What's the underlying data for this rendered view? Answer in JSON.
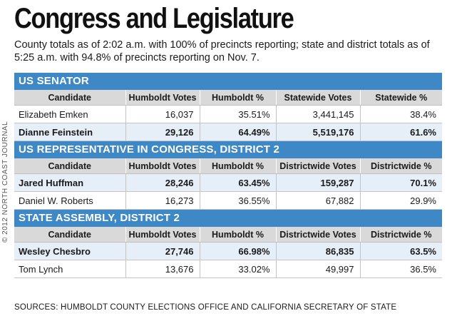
{
  "title": "Congress and Legislature",
  "subtitle": "County totals as of 2:02 a.m. with 100% of precincts reporting; state and district totals as of 5:25 a.m. with 94.8% of precincts reporting on Nov. 7.",
  "side_credit": "© 2012 NORTH COAST JOURNAL",
  "source": "SOURCES: HUMBOLDT COUNTY ELECTIONS OFFICE AND CALIFORNIA SECRETARY OF STATE",
  "colors": {
    "header_blue": "#3e88c6",
    "column_gray": "#d9d9d9",
    "winner_row": "#e6eef8"
  },
  "sections": [
    {
      "header": "US SENATOR",
      "columns": [
        "Candidate",
        "Humboldt Votes",
        "Humboldt %",
        "Statewide Votes",
        "Statewide %"
      ],
      "rows": [
        {
          "name": "Elizabeth Emken",
          "hvotes": "16,037",
          "hpct": "35.51%",
          "votes": "3,441,145",
          "pct": "38.4%",
          "winner": false
        },
        {
          "name": "Dianne Feinstein",
          "hvotes": "29,126",
          "hpct": "64.49%",
          "votes": "5,519,176",
          "pct": "61.6%",
          "winner": true
        }
      ]
    },
    {
      "header": "US REPRESENTATIVE IN CONGRESS, DISTRICT 2",
      "columns": [
        "Candidate",
        "Humboldt Votes",
        "Humboldt %",
        "Districtwide Votes",
        "Districtwide %"
      ],
      "rows": [
        {
          "name": "Jared Huffman",
          "hvotes": "28,246",
          "hpct": "63.45%",
          "votes": "159,287",
          "pct": "70.1%",
          "winner": true
        },
        {
          "name": "Daniel W. Roberts",
          "hvotes": "16,273",
          "hpct": "36.55%",
          "votes": "67,882",
          "pct": "29.9%",
          "winner": false
        }
      ]
    },
    {
      "header": "STATE ASSEMBLY, DISTRICT 2",
      "columns": [
        "Candidate",
        "Humboldt Votes",
        "Humboldt %",
        "Districtwide Votes",
        "Districtwide %"
      ],
      "rows": [
        {
          "name": "Wesley Chesbro",
          "hvotes": "27,746",
          "hpct": "66.98%",
          "votes": "86,835",
          "pct": "63.5%",
          "winner": true
        },
        {
          "name": "Tom Lynch",
          "hvotes": "13,676",
          "hpct": "33.02%",
          "votes": "49,997",
          "pct": "36.5%",
          "winner": false
        }
      ]
    }
  ]
}
